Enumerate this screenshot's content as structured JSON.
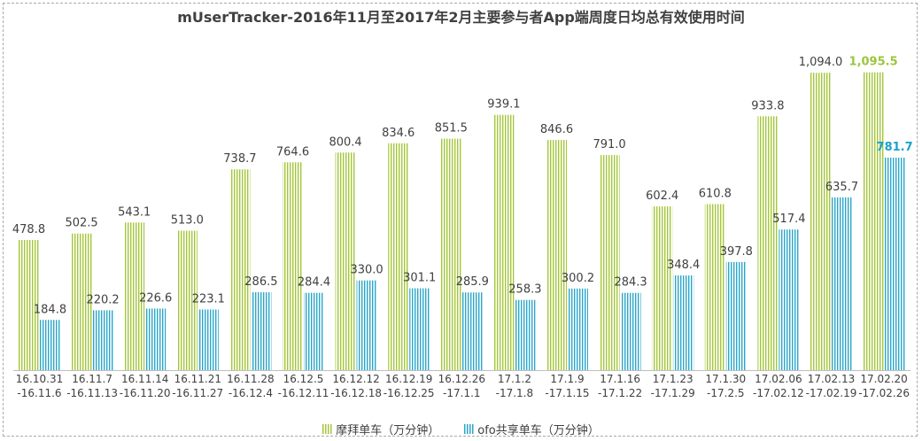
{
  "chart_data": {
    "type": "bar",
    "title": "mUserTracker-2016年11月至2017年2月主要参与者App端周度日均总有效使用时间",
    "categories": [
      [
        "16.10.31",
        "-16.11.6"
      ],
      [
        "16.11.7",
        "-16.11.13"
      ],
      [
        "16.11.14",
        "-16.11.20"
      ],
      [
        "16.11.21",
        "-16.11.27"
      ],
      [
        "16.11.28",
        "-16.12.4"
      ],
      [
        "16.12.5",
        "-16.12.11"
      ],
      [
        "16.12.12",
        "-16.12.18"
      ],
      [
        "16.12.19",
        "-16.12.25"
      ],
      [
        "16.12.26",
        "-17.1.1"
      ],
      [
        "17.1.2",
        "-17.1.8"
      ],
      [
        "17.1.9",
        "-17.1.15"
      ],
      [
        "17.1.16",
        "-17.1.22"
      ],
      [
        "17.1.23",
        "-17.1.29"
      ],
      [
        "17.1.30",
        "-17.2.5"
      ],
      [
        "17.02.06",
        "-17.02.12"
      ],
      [
        "17.02.13",
        "-17.02.19"
      ],
      [
        "17.02.20",
        "-17.02.26"
      ]
    ],
    "series": [
      {
        "name": "摩拜单车（万分钟）",
        "values": [
          478.8,
          502.5,
          543.1,
          513.0,
          738.7,
          764.6,
          800.4,
          834.6,
          851.5,
          939.1,
          846.6,
          791.0,
          602.4,
          610.8,
          933.8,
          1094.0,
          1095.5
        ],
        "labels": [
          "478.8",
          "502.5",
          "543.1",
          "513.0",
          "738.7",
          "764.6",
          "800.4",
          "834.6",
          "851.5",
          "939.1",
          "846.6",
          "791.0",
          "602.4",
          "610.8",
          "933.8",
          "1,094.0",
          "1,095.5"
        ],
        "color": "#a4c639",
        "highlight_color": "#9bc53d"
      },
      {
        "name": "ofo共享单车（万分钟）",
        "values": [
          184.8,
          220.2,
          226.6,
          223.1,
          286.5,
          284.4,
          330.0,
          301.1,
          285.9,
          258.3,
          300.2,
          284.3,
          348.4,
          397.8,
          517.4,
          635.7,
          781.7
        ],
        "labels": [
          "184.8",
          "220.2",
          "226.6",
          "223.1",
          "286.5",
          "284.4",
          "330.0",
          "301.1",
          "285.9",
          "258.3",
          "300.2",
          "284.3",
          "348.4",
          "397.8",
          "517.4",
          "635.7",
          "781.7"
        ],
        "color": "#2aa6c8",
        "highlight_color": "#1aa3c9"
      }
    ],
    "highlight_last": true,
    "ylim": [
      0,
      1200
    ],
    "grid": false,
    "legend_position": "bottom"
  }
}
